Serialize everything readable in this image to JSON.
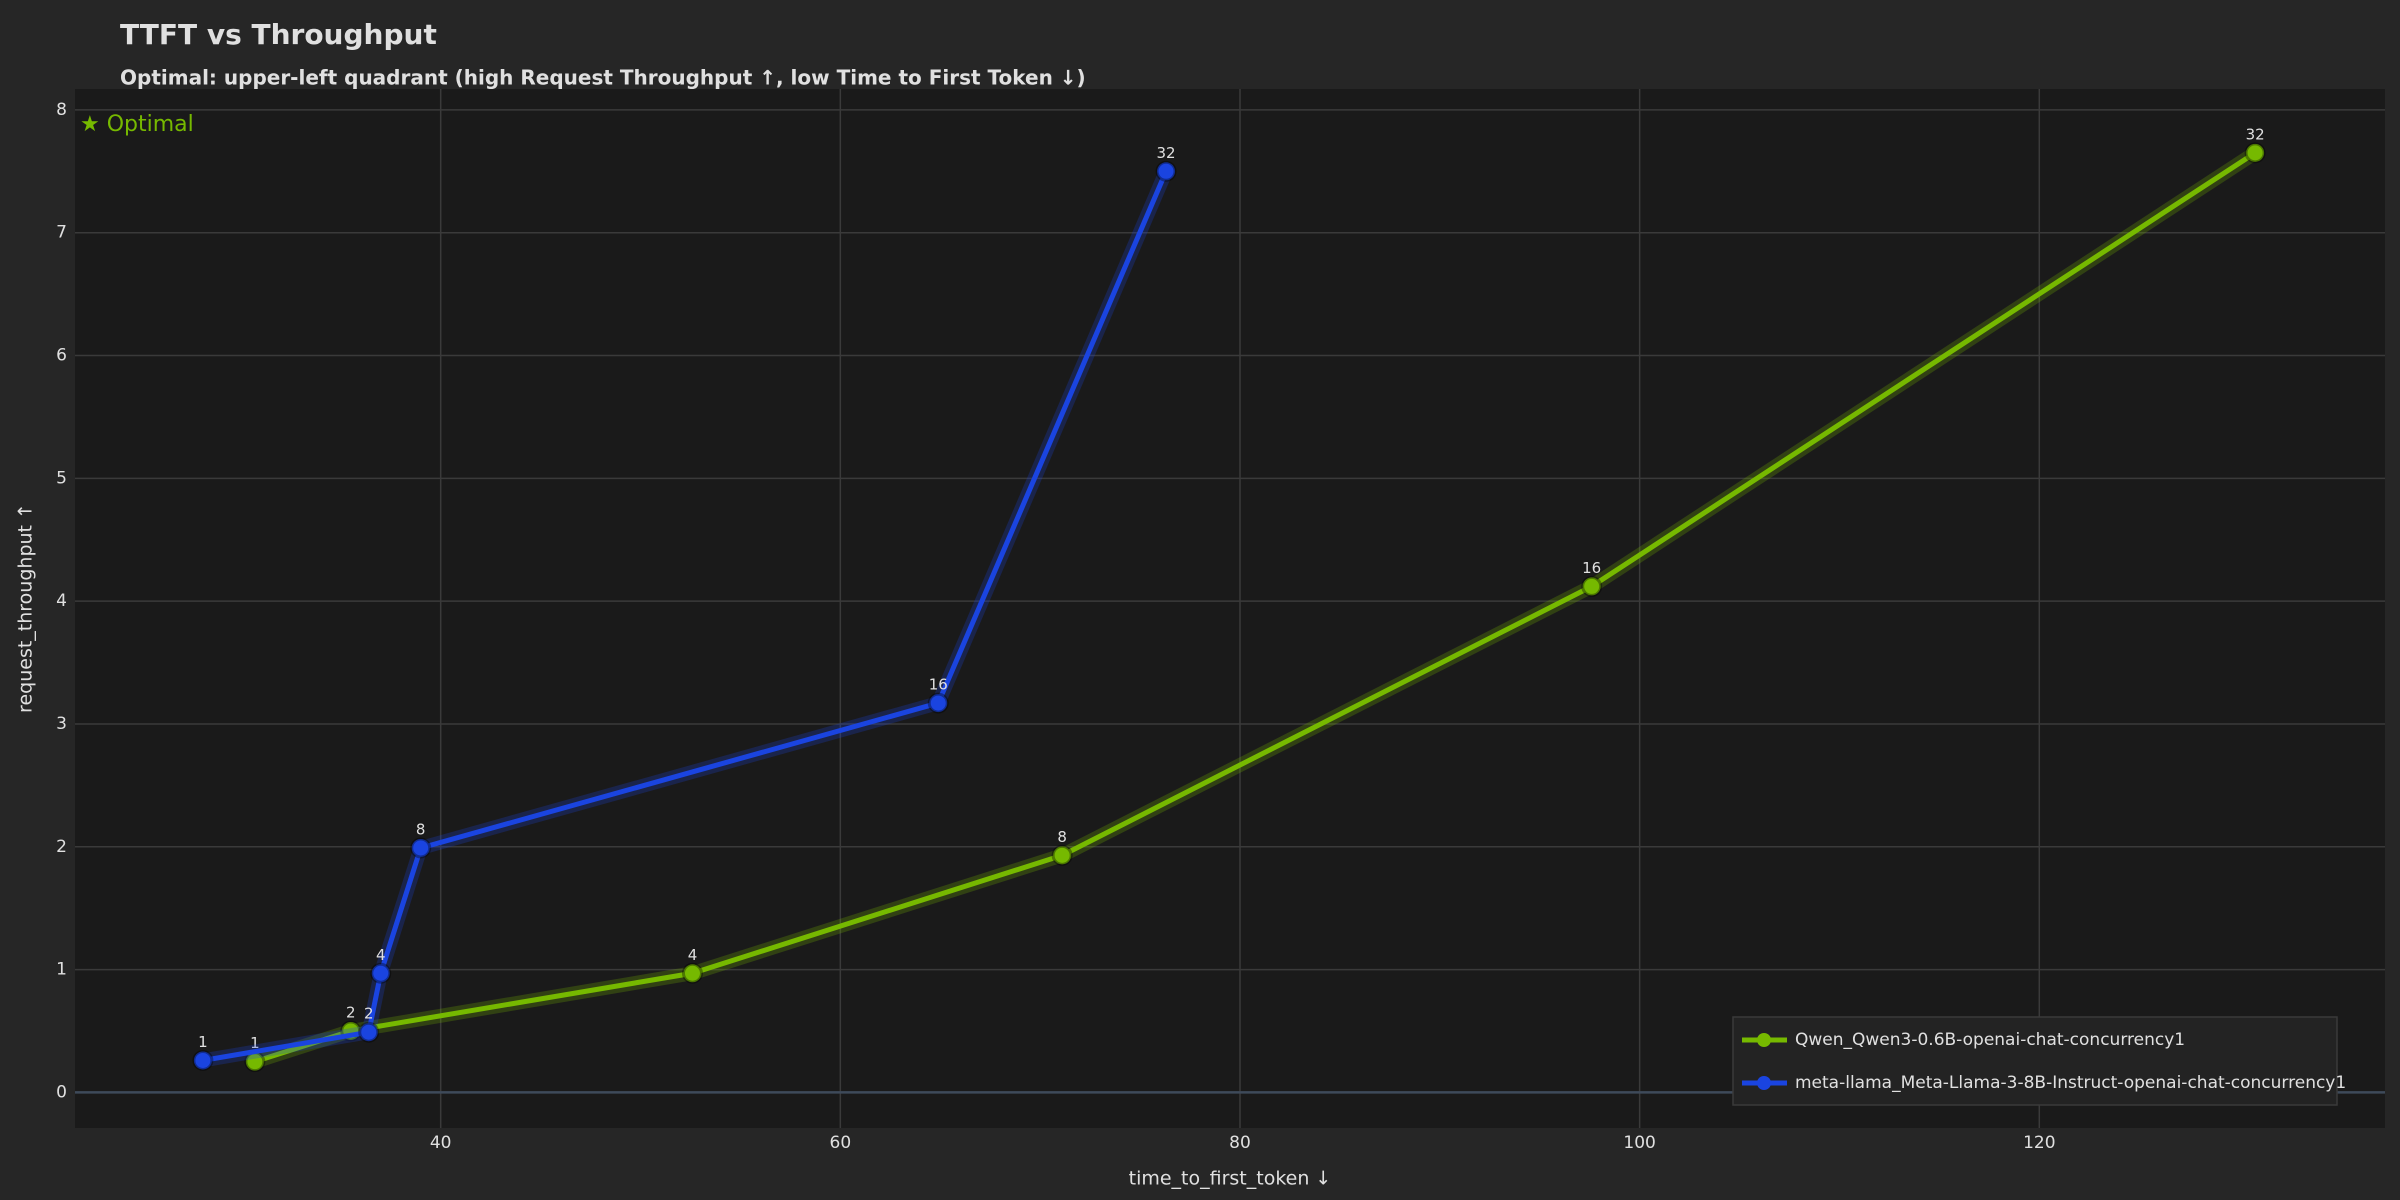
{
  "chart_data": {
    "type": "line",
    "title": "TTFT vs Throughput",
    "subtitle": "Optimal: upper-left quadrant (high Request Throughput ↑, low Time to First Token ↓)",
    "annotation": "★ Optimal",
    "xlabel": "time_to_first_token ↓",
    "ylabel": "request_throughput ↑",
    "xlim": [
      21.7,
      137.3
    ],
    "ylim": [
      -0.29,
      8.17
    ],
    "xticks": [
      40,
      60,
      80,
      100,
      120
    ],
    "yticks": [
      0,
      1,
      2,
      3,
      4,
      5,
      6,
      7,
      8
    ],
    "grid": true,
    "legend": "lower right",
    "series": [
      {
        "name": "Qwen_Qwen3-0.6B-openai-chat-concurrency1",
        "color": "#76b900",
        "x": [
          30.7,
          35.5,
          52.6,
          71.1,
          97.6,
          130.8
        ],
        "values": [
          0.25,
          0.5,
          0.97,
          1.93,
          4.12,
          7.65
        ],
        "labels": [
          1,
          2,
          4,
          8,
          16,
          32
        ]
      },
      {
        "name": "meta-llama_Meta-Llama-3-8B-Instruct-openai-chat-concurrency1",
        "color": "#1a44e0",
        "x": [
          28.1,
          36.4,
          37.0,
          39.0,
          64.9,
          76.3
        ],
        "values": [
          0.26,
          0.49,
          0.97,
          1.99,
          3.17,
          7.5
        ],
        "labels": [
          1,
          2,
          4,
          8,
          16,
          32
        ]
      }
    ]
  }
}
